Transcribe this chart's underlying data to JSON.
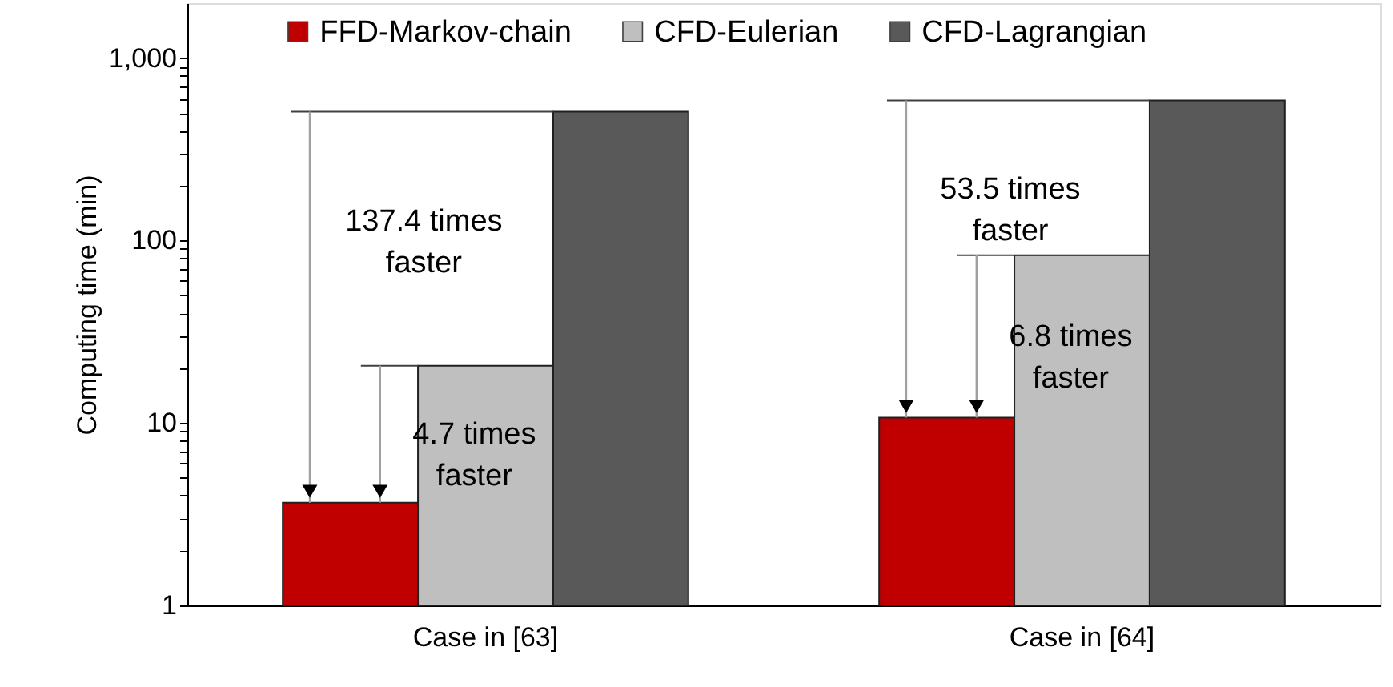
{
  "chart_data": {
    "type": "bar",
    "ylabel": "Computing time (min)",
    "categories": [
      "Case in [63]",
      "Case in [64]"
    ],
    "series": [
      {
        "name": "FFD-Markov-chain",
        "color": "#c00000",
        "values": [
          3.66,
          10.7
        ]
      },
      {
        "name": "CFD-Eulerian",
        "color": "#bfbfbf",
        "values": [
          20.6,
          83
        ]
      },
      {
        "name": "CFD-Lagrangian",
        "color": "#595959",
        "values": [
          508,
          586
        ]
      }
    ],
    "log": "y",
    "ylim": [
      1,
      2000
    ],
    "yticks": [
      1,
      {
        "value": 2,
        "label": null
      },
      {
        "value": 3,
        "label": null
      },
      {
        "value": 4,
        "label": null
      },
      {
        "value": 5,
        "label": null
      },
      {
        "value": 6,
        "label": null
      },
      {
        "value": 7,
        "label": null
      },
      {
        "value": 8,
        "label": null
      },
      {
        "value": 9,
        "label": null
      },
      10,
      {
        "value": 20,
        "label": null
      },
      {
        "value": 30,
        "label": null
      },
      {
        "value": 40,
        "label": null
      },
      {
        "value": 50,
        "label": null
      },
      {
        "value": 60,
        "label": null
      },
      {
        "value": 70,
        "label": null
      },
      {
        "value": 80,
        "label": null
      },
      {
        "value": 90,
        "label": null
      },
      100,
      {
        "value": 200,
        "label": null
      },
      {
        "value": 300,
        "label": null
      },
      {
        "value": 400,
        "label": null
      },
      {
        "value": 500,
        "label": null
      },
      {
        "value": 600,
        "label": null
      },
      {
        "value": 700,
        "label": null
      },
      {
        "value": 800,
        "label": null
      },
      {
        "value": 900,
        "label": null
      },
      {
        "value": 1000,
        "label": "1,000"
      }
    ],
    "annotations": [
      "137.4 times faster",
      "4.7 times faster",
      "53.5 times faster",
      "6.8 times faster"
    ],
    "legend": "top",
    "grid": false
  }
}
